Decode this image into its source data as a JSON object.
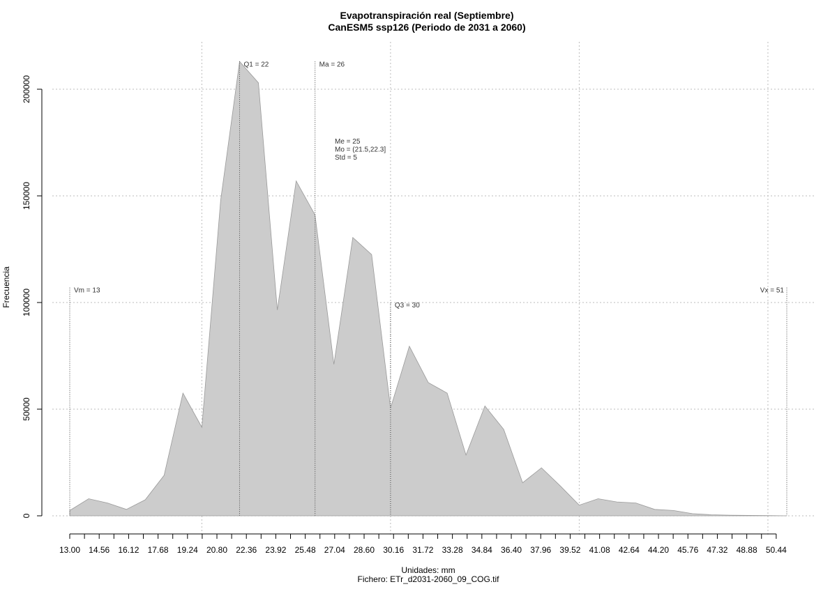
{
  "chart_data": {
    "type": "area",
    "title": "Evapotranspiración real (Septiembre)",
    "subtitle": "CanESM5 ssp126 (Periodo de 2031 a 2060)",
    "xlabel": "Unidades: mm",
    "caption": "Fichero: ETr_d2031-2060_09_COG.tif",
    "ylabel": "Frecuencia",
    "xlim": [
      13.0,
      51.0
    ],
    "ylim": [
      0,
      215000
    ],
    "x_ticks": [
      "13.00",
      "14.56",
      "16.12",
      "17.68",
      "19.24",
      "20.80",
      "22.36",
      "23.92",
      "25.48",
      "27.04",
      "28.60",
      "30.16",
      "31.72",
      "33.28",
      "34.84",
      "36.40",
      "37.96",
      "39.52",
      "41.08",
      "42.64",
      "44.20",
      "45.76",
      "47.32",
      "48.88",
      "50.44"
    ],
    "y_ticks": [
      0,
      50000,
      100000,
      150000,
      200000
    ],
    "y_tick_labels": [
      "0",
      "50000",
      "100000",
      "150000",
      "200000"
    ],
    "grid": true,
    "series": [
      {
        "color": "#cccccc",
        "x": [
          13.0,
          14.0,
          15.0,
          16.0,
          17.0,
          18.0,
          19.0,
          20.0,
          21.0,
          22.0,
          23.0,
          24.0,
          25.0,
          26.0,
          27.0,
          28.0,
          29.0,
          30.0,
          31.0,
          32.0,
          33.0,
          34.0,
          35.0,
          36.0,
          37.0,
          38.0,
          39.0,
          40.0,
          41.0,
          42.0,
          43.0,
          44.0,
          45.0,
          46.0,
          47.0,
          48.0,
          49.0,
          50.0,
          51.0
        ],
        "y": [
          2500,
          8000,
          6000,
          3000,
          7500,
          19000,
          57500,
          41500,
          148000,
          213000,
          203000,
          96500,
          157000,
          141000,
          71000,
          130500,
          122500,
          50500,
          79500,
          62500,
          57500,
          28500,
          51500,
          40500,
          15500,
          22500,
          14000,
          5000,
          8000,
          6500,
          6000,
          3000,
          2500,
          1000,
          500,
          300,
          200,
          100,
          0
        ]
      }
    ],
    "vlines": [
      {
        "label": "Vm = 13",
        "x": 13.0,
        "y_top": 107000,
        "label_y": 106000
      },
      {
        "label": "Q1 = 22",
        "x": 22.0,
        "y_top": 213000,
        "label_y": 212000
      },
      {
        "label": "Ma = 26",
        "x": 26.0,
        "y_top": 213000,
        "label_y": 212000
      },
      {
        "label": "Q3 = 30",
        "x": 30.0,
        "y_top": 100000,
        "label_y": 99000
      },
      {
        "label": "Vx = 51",
        "x": 51.0,
        "y_top": 107000,
        "label_y": 106000
      }
    ],
    "stats": [
      "Me = 25",
      "Mo = (21.5,22.3]",
      "Std = 5"
    ]
  }
}
